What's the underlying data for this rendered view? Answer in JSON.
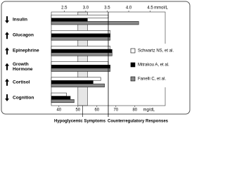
{
  "chart_data": {
    "type": "bar",
    "orientation": "horizontal",
    "categories": [
      "Insulin",
      "Glucagon",
      "Epinephrine",
      "Growth Hormone",
      "Cortisol",
      "Cognition"
    ],
    "directions": [
      "down",
      "up",
      "up",
      "up",
      "up",
      "down"
    ],
    "series": [
      {
        "name": "Schwartz NS, et al.",
        "color": "#ffffff",
        "values": [
          66,
          67,
          67,
          66,
          62,
          44
        ]
      },
      {
        "name": "Mitrakou A, et al.",
        "color": "#000000",
        "values": [
          55,
          67,
          68,
          67,
          58,
          46
        ]
      },
      {
        "name": "Fanelli C, et al.",
        "color": "#888888",
        "values": [
          82,
          67,
          68,
          67,
          64,
          48
        ]
      }
    ],
    "xlim": [
      36,
      96
    ],
    "xticks": [
      40,
      50,
      60,
      70,
      80
    ],
    "xlabel": "mg/dL",
    "x2lim": [
      2.2,
      4.85
    ],
    "x2ticks": [
      2.5,
      {
        "value": 3,
        "label": "3.0"
      },
      3.5,
      {
        "value": 4,
        "label": "4.0"
      },
      4.5
    ],
    "x2label": "mmol/L",
    "annotations": [
      {
        "text": "Hypoglycemic Symptoms",
        "xrange": [
          50,
          55
        ]
      },
      {
        "text": "Counterregulatory Responses",
        "x": 66
      }
    ],
    "legend": "right"
  }
}
